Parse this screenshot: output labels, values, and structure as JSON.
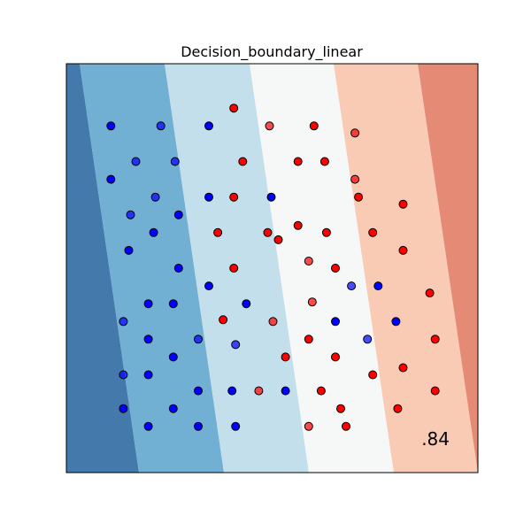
{
  "chart_data": {
    "type": "scatter",
    "title": "Decision_boundary_linear",
    "score_label": ".84",
    "xlim": [
      0,
      11.55
    ],
    "ylim": [
      0,
      11.5
    ],
    "xticks": [],
    "yticks": [],
    "grid": false,
    "background": {
      "kind": "linear-decision-boundary",
      "colormap": "RdBu reversed",
      "contour_bands": 7,
      "band_colors": [
        "#4479ab",
        "#71afd3",
        "#c3dfec",
        "#f6f7f7",
        "#f9cab4",
        "#e58a74",
        "#b04052"
      ]
    },
    "series": [
      {
        "name": "",
        "color": "#0000ff",
        "points": [
          {
            "x": 1.25,
            "y": 9.75,
            "a": 1.0
          },
          {
            "x": 2.65,
            "y": 9.75,
            "a": 0.7
          },
          {
            "x": 4.0,
            "y": 9.75,
            "a": 1.0
          },
          {
            "x": 1.95,
            "y": 8.75,
            "a": 0.7
          },
          {
            "x": 3.05,
            "y": 8.75,
            "a": 0.7
          },
          {
            "x": 1.25,
            "y": 8.25,
            "a": 1.0
          },
          {
            "x": 2.5,
            "y": 7.75,
            "a": 0.7
          },
          {
            "x": 4.0,
            "y": 7.75,
            "a": 1.0
          },
          {
            "x": 5.75,
            "y": 7.75,
            "a": 1.0
          },
          {
            "x": 1.8,
            "y": 7.25,
            "a": 0.7
          },
          {
            "x": 3.15,
            "y": 7.25,
            "a": 1.0
          },
          {
            "x": 2.45,
            "y": 6.75,
            "a": 1.0
          },
          {
            "x": 1.75,
            "y": 6.25,
            "a": 1.0
          },
          {
            "x": 3.15,
            "y": 5.75,
            "a": 1.0
          },
          {
            "x": 4.0,
            "y": 5.25,
            "a": 1.0
          },
          {
            "x": 8.0,
            "y": 5.25,
            "a": 0.7
          },
          {
            "x": 8.75,
            "y": 5.25,
            "a": 1.0
          },
          {
            "x": 2.3,
            "y": 4.75,
            "a": 1.0
          },
          {
            "x": 3.0,
            "y": 4.75,
            "a": 1.0
          },
          {
            "x": 5.05,
            "y": 4.75,
            "a": 1.0
          },
          {
            "x": 1.6,
            "y": 4.25,
            "a": 0.7
          },
          {
            "x": 7.55,
            "y": 4.25,
            "a": 1.0
          },
          {
            "x": 9.25,
            "y": 4.25,
            "a": 1.0
          },
          {
            "x": 2.3,
            "y": 3.75,
            "a": 1.0
          },
          {
            "x": 3.7,
            "y": 3.75,
            "a": 0.7
          },
          {
            "x": 4.75,
            "y": 3.6,
            "a": 0.7
          },
          {
            "x": 8.45,
            "y": 3.75,
            "a": 0.7
          },
          {
            "x": 3.0,
            "y": 3.25,
            "a": 1.0
          },
          {
            "x": 1.6,
            "y": 2.75,
            "a": 0.7
          },
          {
            "x": 2.3,
            "y": 2.75,
            "a": 1.0
          },
          {
            "x": 3.7,
            "y": 2.3,
            "a": 1.0
          },
          {
            "x": 4.65,
            "y": 2.3,
            "a": 1.0
          },
          {
            "x": 6.15,
            "y": 2.3,
            "a": 1.0
          },
          {
            "x": 1.6,
            "y": 1.8,
            "a": 1.0
          },
          {
            "x": 3.0,
            "y": 1.8,
            "a": 1.0
          },
          {
            "x": 2.3,
            "y": 1.3,
            "a": 1.0
          },
          {
            "x": 3.7,
            "y": 1.3,
            "a": 1.0
          },
          {
            "x": 4.75,
            "y": 1.3,
            "a": 1.0
          }
        ]
      },
      {
        "name": "",
        "color": "#ff0000",
        "points": [
          {
            "x": 4.7,
            "y": 10.25,
            "a": 1.0
          },
          {
            "x": 5.7,
            "y": 9.75,
            "a": 0.7
          },
          {
            "x": 6.95,
            "y": 9.75,
            "a": 1.0
          },
          {
            "x": 8.1,
            "y": 9.55,
            "a": 0.7
          },
          {
            "x": 4.95,
            "y": 8.75,
            "a": 1.0
          },
          {
            "x": 6.5,
            "y": 8.75,
            "a": 1.0
          },
          {
            "x": 7.25,
            "y": 8.75,
            "a": 1.0
          },
          {
            "x": 8.1,
            "y": 8.25,
            "a": 0.7
          },
          {
            "x": 4.7,
            "y": 7.75,
            "a": 1.0
          },
          {
            "x": 8.2,
            "y": 7.75,
            "a": 1.0
          },
          {
            "x": 9.45,
            "y": 7.55,
            "a": 1.0
          },
          {
            "x": 6.5,
            "y": 6.95,
            "a": 1.0
          },
          {
            "x": 4.25,
            "y": 6.75,
            "a": 1.0
          },
          {
            "x": 5.65,
            "y": 6.75,
            "a": 1.0
          },
          {
            "x": 7.3,
            "y": 6.75,
            "a": 1.0
          },
          {
            "x": 8.6,
            "y": 6.75,
            "a": 1.0
          },
          {
            "x": 5.95,
            "y": 6.55,
            "a": 1.0
          },
          {
            "x": 9.45,
            "y": 6.25,
            "a": 1.0
          },
          {
            "x": 6.8,
            "y": 5.95,
            "a": 0.7
          },
          {
            "x": 4.7,
            "y": 5.75,
            "a": 1.0
          },
          {
            "x": 7.55,
            "y": 5.75,
            "a": 1.0
          },
          {
            "x": 10.2,
            "y": 5.05,
            "a": 1.0
          },
          {
            "x": 6.9,
            "y": 4.8,
            "a": 0.7
          },
          {
            "x": 4.4,
            "y": 4.3,
            "a": 1.0
          },
          {
            "x": 5.8,
            "y": 4.25,
            "a": 0.7
          },
          {
            "x": 6.8,
            "y": 3.75,
            "a": 1.0
          },
          {
            "x": 10.35,
            "y": 3.75,
            "a": 1.0
          },
          {
            "x": 6.15,
            "y": 3.25,
            "a": 1.0
          },
          {
            "x": 7.55,
            "y": 3.25,
            "a": 1.0
          },
          {
            "x": 8.6,
            "y": 2.75,
            "a": 1.0
          },
          {
            "x": 9.45,
            "y": 2.95,
            "a": 1.0
          },
          {
            "x": 5.4,
            "y": 2.3,
            "a": 0.7
          },
          {
            "x": 7.15,
            "y": 2.3,
            "a": 1.0
          },
          {
            "x": 10.35,
            "y": 2.3,
            "a": 1.0
          },
          {
            "x": 7.7,
            "y": 1.8,
            "a": 1.0
          },
          {
            "x": 9.3,
            "y": 1.8,
            "a": 1.0
          },
          {
            "x": 6.8,
            "y": 1.3,
            "a": 0.7
          },
          {
            "x": 7.85,
            "y": 1.3,
            "a": 1.0
          }
        ]
      }
    ]
  }
}
